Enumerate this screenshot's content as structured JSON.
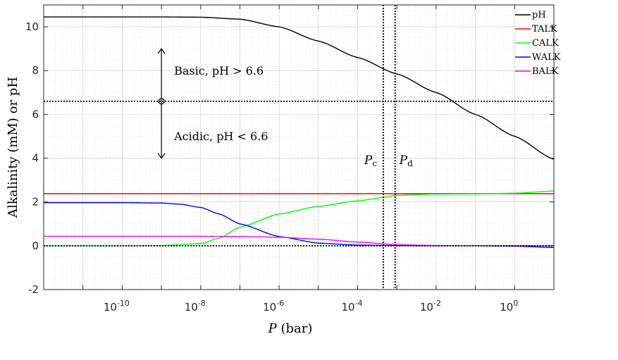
{
  "chart_data": {
    "type": "line",
    "xscale": "log",
    "x_exponent_range": [
      -12,
      1
    ],
    "xlim": [
      1e-12,
      10
    ],
    "ylim": [
      -2,
      11
    ],
    "xlabel_var": "P",
    "xlabel_unit": " (bar)",
    "ylabel": "Alkalinity (mM) or pH",
    "xticks": [
      {
        "base": "10",
        "exp": "-10",
        "value": 1e-10
      },
      {
        "base": "10",
        "exp": "-8",
        "value": 1e-08
      },
      {
        "base": "10",
        "exp": "-6",
        "value": 1e-06
      },
      {
        "base": "10",
        "exp": "-4",
        "value": 0.0001
      },
      {
        "base": "10",
        "exp": "-2",
        "value": 0.01
      },
      {
        "base": "10",
        "exp": "0",
        "value": 1
      }
    ],
    "yticks": [
      {
        "label": "-2",
        "value": -2
      },
      {
        "label": "0",
        "value": 0
      },
      {
        "label": "2",
        "value": 2
      },
      {
        "label": "4",
        "value": 4
      },
      {
        "label": "6",
        "value": 6
      },
      {
        "label": "8",
        "value": 8
      },
      {
        "label": "10",
        "value": 10
      }
    ],
    "grid": true,
    "legend_position": "top-right",
    "series": [
      {
        "name": "pH",
        "color": "#000000",
        "x": [
          1e-12,
          1e-10,
          1e-09,
          1e-08,
          1e-07,
          1e-06,
          1e-05,
          0.0001,
          0.001,
          0.01,
          0.1,
          1,
          10
        ],
        "y": [
          10.45,
          10.45,
          10.45,
          10.44,
          10.35,
          10.0,
          9.35,
          8.6,
          7.85,
          7.0,
          6.0,
          5.0,
          3.95
        ]
      },
      {
        "name": "TALK",
        "color": "#ff0000",
        "x": [
          1e-12,
          10
        ],
        "y": [
          2.38,
          2.38
        ]
      },
      {
        "name": "CALK",
        "color": "#00ff00",
        "x": [
          1e-12,
          1e-10,
          1e-09,
          1e-08,
          3e-08,
          1e-07,
          1e-06,
          1e-05,
          0.0001,
          0.001,
          0.01,
          0.1,
          1,
          10
        ],
        "y": [
          0,
          0,
          0.01,
          0.1,
          0.35,
          0.85,
          1.45,
          1.8,
          2.05,
          2.3,
          2.36,
          2.37,
          2.4,
          2.5
        ]
      },
      {
        "name": "WALK",
        "color": "#0000ff",
        "x": [
          1e-12,
          1e-10,
          1e-09,
          3e-09,
          1e-08,
          3e-08,
          1e-07,
          1e-06,
          1e-05,
          0.0001,
          0.001,
          0.01,
          0.1,
          1,
          10
        ],
        "y": [
          1.97,
          1.97,
          1.95,
          1.9,
          1.75,
          1.45,
          1.0,
          0.42,
          0.12,
          0.03,
          0.01,
          0,
          0,
          -0.02,
          -0.08
        ]
      },
      {
        "name": "BALK",
        "color": "#ff00ff",
        "x": [
          1e-12,
          1e-08,
          1e-07,
          1e-06,
          1e-05,
          0.0001,
          0.001,
          0.01,
          0.1,
          1,
          10
        ],
        "y": [
          0.43,
          0.43,
          0.42,
          0.39,
          0.3,
          0.17,
          0.05,
          0.01,
          0,
          0,
          0
        ]
      }
    ],
    "reference_lines": [
      {
        "orientation": "horizontal",
        "value": 6.6
      },
      {
        "orientation": "horizontal",
        "value": 0
      },
      {
        "orientation": "vertical",
        "value": 0.00045,
        "label_var": "P",
        "label_sub": "c"
      },
      {
        "orientation": "vertical",
        "value": 0.0009,
        "label_var": "P",
        "label_sub": "d"
      }
    ],
    "annotations": {
      "marker": {
        "x": 1e-09,
        "y": 6.6
      },
      "arrow_top_y": 9.0,
      "arrow_bottom_y": 4.0,
      "basic_text": "Basic,  pH > 6.6",
      "acidic_text": "Acidic, pH < 6.6"
    }
  }
}
